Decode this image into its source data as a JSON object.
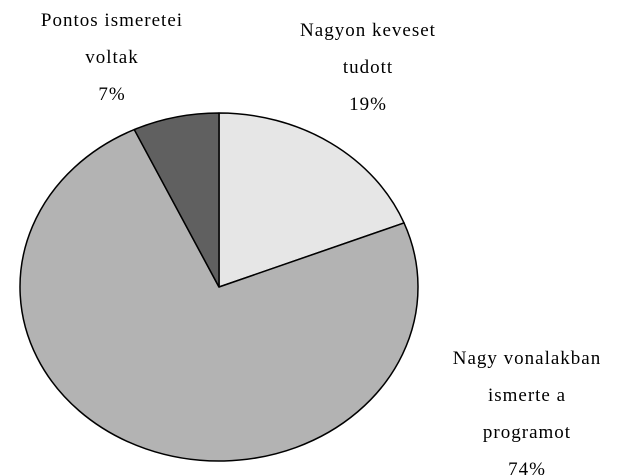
{
  "chart_data": {
    "type": "pie",
    "categories": [
      "Nagyon keveset tudott",
      "Nagy vonalakban ismerte a programot",
      "Pontos ismeretei voltak"
    ],
    "values": [
      19,
      74,
      7
    ],
    "value_labels": [
      "19%",
      "74%",
      "7%"
    ],
    "colors": [
      "#e6e6e6",
      "#b3b3b3",
      "#606060"
    ]
  }
}
